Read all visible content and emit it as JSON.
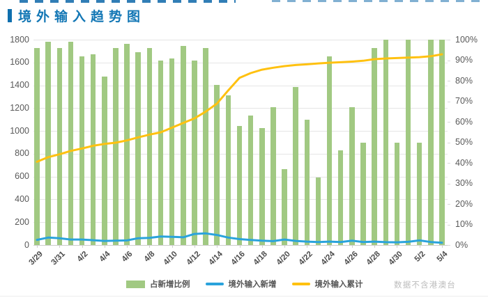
{
  "title": "境外输入趋势图",
  "footnote": "数据不含港澳台",
  "legend": [
    {
      "label": "占新增比例",
      "type": "bar",
      "color": "#a1c982"
    },
    {
      "label": "境外输入新增",
      "type": "line",
      "color": "#2aa3dc"
    },
    {
      "label": "境外输入累计",
      "type": "line",
      "color": "#ffc110"
    }
  ],
  "colors": {
    "title_blue": "#1377b5",
    "bar_green": "#a1c982",
    "line_blue": "#2aa3dc",
    "line_yellow": "#ffc110",
    "axis_text": "#595959",
    "gridline": "#e5e5e5"
  },
  "chart_data": {
    "type": "combo",
    "title": "境外输入趋势图",
    "grid": true,
    "legend_position": "bottom",
    "categories": [
      "3/29",
      "3/30",
      "3/31",
      "4/1",
      "4/2",
      "4/3",
      "4/4",
      "4/5",
      "4/6",
      "4/7",
      "4/8",
      "4/9",
      "4/10",
      "4/11",
      "4/12",
      "4/13",
      "4/14",
      "4/15",
      "4/16",
      "4/17",
      "4/18",
      "4/19",
      "4/20",
      "4/21",
      "4/22",
      "4/23",
      "4/24",
      "4/25",
      "4/26",
      "4/27",
      "4/28",
      "4/29",
      "4/30",
      "5/1",
      "5/2",
      "5/3",
      "5/4"
    ],
    "x_tick_labels": [
      "3/29",
      "3/31",
      "4/2",
      "4/4",
      "4/6",
      "4/8",
      "4/10",
      "4/12",
      "4/14",
      "4/16",
      "4/18",
      "4/20",
      "4/22",
      "4/24",
      "4/26",
      "4/28",
      "4/30",
      "5/2",
      "5/4"
    ],
    "left_axis": {
      "min": 0,
      "max": 1800,
      "step": 200,
      "tick_labels": [
        "1800",
        "1600",
        "1400",
        "1200",
        "1000",
        "800",
        "600",
        "400",
        "200",
        "0"
      ]
    },
    "right_axis": {
      "min": "0%",
      "max": "100%",
      "step": "10%",
      "tick_labels": [
        "100%",
        "90%",
        "80%",
        "70%",
        "60%",
        "50%",
        "40%",
        "30%",
        "20%",
        "10%",
        "0%"
      ]
    },
    "series": [
      {
        "name": "占新增比例",
        "type": "bar",
        "axis": "right",
        "unit": "%",
        "color": "#a1c982",
        "values": [
          96,
          99,
          96,
          99,
          92,
          93,
          82,
          96,
          98,
          94,
          96,
          90,
          91,
          97,
          90,
          96,
          78,
          73,
          58,
          63,
          57,
          67,
          37,
          77,
          61,
          33,
          92,
          46,
          67,
          50,
          96,
          100,
          50,
          100,
          50,
          100,
          100
        ]
      },
      {
        "name": "境外输入新增",
        "type": "line",
        "axis": "left",
        "color": "#2aa3dc",
        "values": [
          45,
          65,
          60,
          48,
          48,
          42,
          36,
          38,
          40,
          60,
          63,
          75,
          72,
          68,
          97,
          102,
          88,
          65,
          52,
          44,
          38,
          34,
          48,
          36,
          30,
          26,
          30,
          26,
          38,
          26,
          30,
          25,
          24,
          28,
          40,
          26,
          20
        ]
      },
      {
        "name": "境外输入累计",
        "type": "line",
        "axis": "left",
        "color": "#ffc110",
        "values": [
          730,
          770,
          795,
          825,
          846,
          870,
          886,
          897,
          917,
          944,
          968,
          988,
          1029,
          1070,
          1110,
          1170,
          1240,
          1355,
          1465,
          1507,
          1537,
          1554,
          1568,
          1578,
          1584,
          1592,
          1598,
          1602,
          1608,
          1615,
          1629,
          1635,
          1639,
          1643,
          1647,
          1655,
          1672
        ]
      }
    ]
  }
}
